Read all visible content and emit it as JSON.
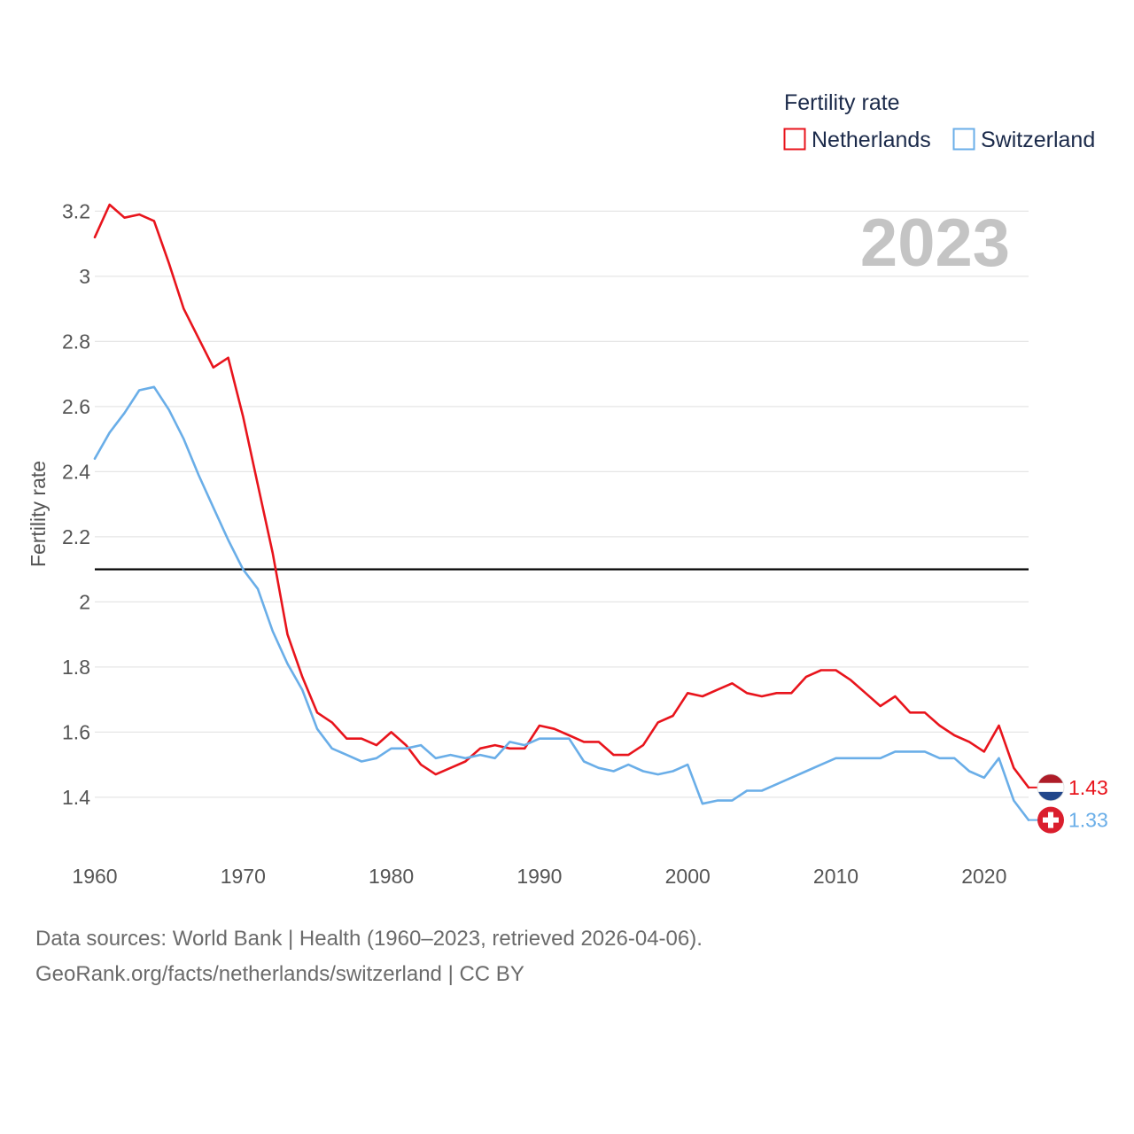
{
  "legend": {
    "title": "Fertility rate"
  },
  "year_display": "2023",
  "footer": {
    "line1": "Data sources: World Bank | Health (1960–2023, retrieved 2026-04-06).",
    "line2": "GeoRank.org/facts/netherlands/switzerland | CC BY"
  },
  "chart_data": {
    "type": "line",
    "title": "Fertility rate",
    "xlabel": "",
    "ylabel": "Fertility rate",
    "xlim": [
      1960,
      2023
    ],
    "ylim": [
      1.25,
      3.25
    ],
    "x_ticks": [
      1960,
      1970,
      1980,
      1990,
      2000,
      2010,
      2020
    ],
    "y_ticks": [
      1.4,
      1.6,
      1.8,
      2,
      2.2,
      2.4,
      2.6,
      2.8,
      3,
      3.2
    ],
    "grid": true,
    "legend_position": "top-right",
    "reference_line": {
      "y": 2.1
    },
    "x": [
      1960,
      1961,
      1962,
      1963,
      1964,
      1965,
      1966,
      1967,
      1968,
      1969,
      1970,
      1971,
      1972,
      1973,
      1974,
      1975,
      1976,
      1977,
      1978,
      1979,
      1980,
      1981,
      1982,
      1983,
      1984,
      1985,
      1986,
      1987,
      1988,
      1989,
      1990,
      1991,
      1992,
      1993,
      1994,
      1995,
      1996,
      1997,
      1998,
      1999,
      2000,
      2001,
      2002,
      2003,
      2004,
      2005,
      2006,
      2007,
      2008,
      2009,
      2010,
      2011,
      2012,
      2013,
      2014,
      2015,
      2016,
      2017,
      2018,
      2019,
      2020,
      2021,
      2022,
      2023
    ],
    "series": [
      {
        "name": "Netherlands",
        "color": "#e8141c",
        "end_label": "1.43",
        "values": [
          3.12,
          3.22,
          3.18,
          3.19,
          3.17,
          3.04,
          2.9,
          2.81,
          2.72,
          2.75,
          2.57,
          2.36,
          2.15,
          1.9,
          1.77,
          1.66,
          1.63,
          1.58,
          1.58,
          1.56,
          1.6,
          1.56,
          1.5,
          1.47,
          1.49,
          1.51,
          1.55,
          1.56,
          1.55,
          1.55,
          1.62,
          1.61,
          1.59,
          1.57,
          1.57,
          1.53,
          1.53,
          1.56,
          1.63,
          1.65,
          1.72,
          1.71,
          1.73,
          1.75,
          1.72,
          1.71,
          1.72,
          1.72,
          1.77,
          1.79,
          1.79,
          1.76,
          1.72,
          1.68,
          1.71,
          1.66,
          1.66,
          1.62,
          1.59,
          1.57,
          1.54,
          1.62,
          1.49,
          1.43
        ]
      },
      {
        "name": "Switzerland",
        "color": "#6aaee8",
        "end_label": "1.33",
        "values": [
          2.44,
          2.52,
          2.58,
          2.65,
          2.66,
          2.59,
          2.5,
          2.39,
          2.29,
          2.19,
          2.1,
          2.04,
          1.91,
          1.81,
          1.73,
          1.61,
          1.55,
          1.53,
          1.51,
          1.52,
          1.55,
          1.55,
          1.56,
          1.52,
          1.53,
          1.52,
          1.53,
          1.52,
          1.57,
          1.56,
          1.58,
          1.58,
          1.58,
          1.51,
          1.49,
          1.48,
          1.5,
          1.48,
          1.47,
          1.48,
          1.5,
          1.38,
          1.39,
          1.39,
          1.42,
          1.42,
          1.44,
          1.46,
          1.48,
          1.5,
          1.52,
          1.52,
          1.52,
          1.52,
          1.54,
          1.54,
          1.54,
          1.52,
          1.52,
          1.48,
          1.46,
          1.52,
          1.39,
          1.33
        ]
      }
    ]
  }
}
